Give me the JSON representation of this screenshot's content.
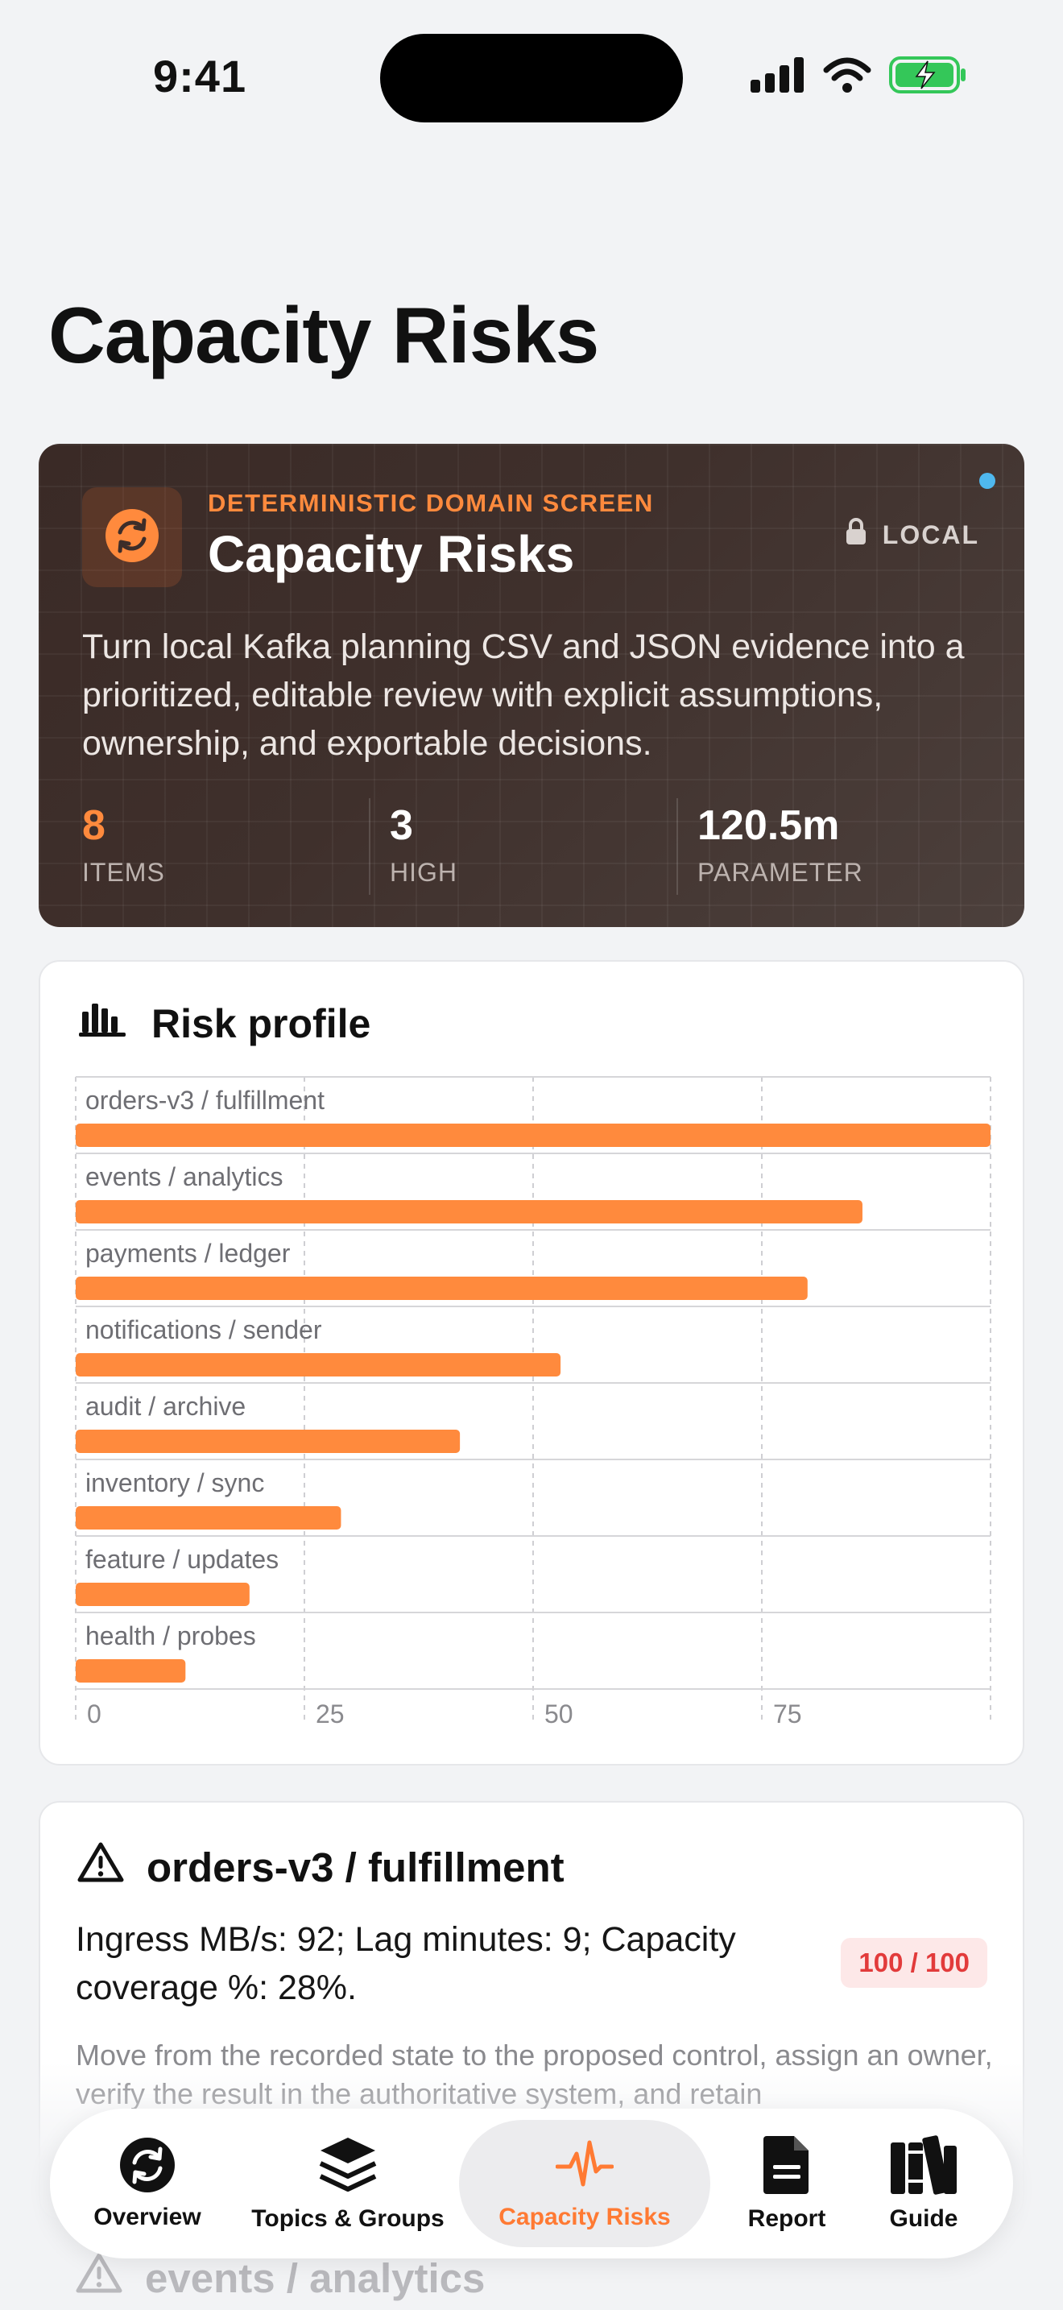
{
  "status_bar": {
    "time": "9:41"
  },
  "page": {
    "title": "Capacity Risks"
  },
  "hero": {
    "eyebrow": "DETERMINISTIC DOMAIN SCREEN",
    "title": "Capacity Risks",
    "badge": "LOCAL",
    "description": "Turn local Kafka planning CSV and JSON evidence into a prioritized, editable review with explicit assumptions, ownership, and exportable decisions.",
    "stats": [
      {
        "value": "8",
        "label": "ITEMS"
      },
      {
        "value": "3",
        "label": "HIGH"
      },
      {
        "value": "120.5m",
        "label": "PARAMETER"
      }
    ],
    "accent_color": "#ff8a3d",
    "indicator_color": "#4fb8ee"
  },
  "risk_profile": {
    "title": "Risk profile",
    "icon": "bar-chart-icon"
  },
  "chart_data": {
    "type": "bar",
    "orientation": "horizontal",
    "categories": [
      "orders-v3 / fulfillment",
      "events / analytics",
      "payments / ledger",
      "notifications / sender",
      "audit / archive",
      "inventory / sync",
      "feature / updates",
      "health / probes"
    ],
    "values": [
      100,
      86,
      80,
      53,
      42,
      29,
      19,
      12
    ],
    "xlim": [
      0,
      100
    ],
    "x_ticks": [
      "0",
      "25",
      "50",
      "75"
    ],
    "bar_color": "#ff8a3d",
    "grid": true
  },
  "item": {
    "title": "orders-v3 / fulfillment",
    "icon": "warning-icon",
    "summary": "Ingress MB/s: 92; Lag minutes: 9; Capacity coverage %: 28%.",
    "score": "100 / 100",
    "note": "Move from the recorded state to the proposed control, assign an owner, verify the result in the authoritative system, and retain"
  },
  "next_item": {
    "title": "events / analytics",
    "icon": "warning-icon"
  },
  "tabs": [
    {
      "label": "Overview",
      "icon": "sync-icon",
      "active": false
    },
    {
      "label": "Topics & Groups",
      "icon": "layers-icon",
      "active": false
    },
    {
      "label": "Capacity Risks",
      "icon": "pulse-icon",
      "active": true
    },
    {
      "label": "Report",
      "icon": "document-icon",
      "active": false
    },
    {
      "label": "Guide",
      "icon": "books-icon",
      "active": false
    }
  ]
}
